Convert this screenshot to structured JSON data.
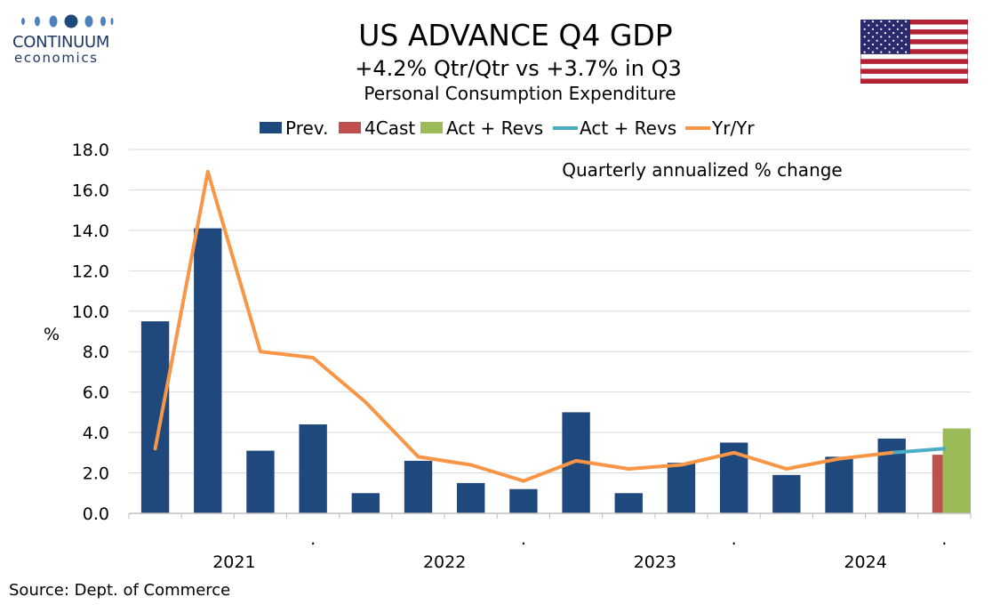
{
  "logo": {
    "line1": "CONTINUUM",
    "line2": "economics"
  },
  "header": {
    "title": "US ADVANCE Q4  GDP",
    "subtitle": "+4.2% Qtr/Qtr vs +3.7% in Q3",
    "subtitle2": "Personal Consumption Expenditure"
  },
  "source": "Source: Dept. of Commerce",
  "colors": {
    "prev": "#1f497d",
    "forecast": "#c0504d",
    "actual_bar": "#9bbb59",
    "actual_line": "#4bacc6",
    "yoy": "#f79646",
    "grid": "#d9d9d9"
  },
  "chart_data": {
    "type": "bar",
    "annotation": "Quarterly annualized % change",
    "ylabel": "%",
    "ylim": [
      0,
      18
    ],
    "yticks": [
      "0.0",
      "2.0",
      "4.0",
      "6.0",
      "8.0",
      "10.0",
      "12.0",
      "14.0",
      "16.0",
      "18.0"
    ],
    "year_labels": [
      {
        "label": "2021",
        "center_index": 1.5
      },
      {
        "label": "2022",
        "center_index": 5.5
      },
      {
        "label": "2023",
        "center_index": 9.5
      },
      {
        "label": "2024",
        "center_index": 13.5
      }
    ],
    "year_dot_after": [
      3,
      7,
      11,
      15
    ],
    "year_dot_label": ".",
    "legend": [
      "Prev.",
      "4Cast",
      "Act + Revs",
      "Act + Revs",
      "Yr/Yr"
    ],
    "legend_placement": "top",
    "series": [
      {
        "name": "Prev.",
        "kind": "bar",
        "values": [
          9.5,
          14.1,
          3.1,
          4.4,
          1.0,
          2.6,
          1.5,
          1.2,
          5.0,
          1.0,
          2.5,
          3.5,
          1.9,
          2.8,
          3.7,
          null
        ]
      },
      {
        "name": "4Cast",
        "kind": "bar",
        "values": [
          null,
          null,
          null,
          null,
          null,
          null,
          null,
          null,
          null,
          null,
          null,
          null,
          null,
          null,
          null,
          2.9
        ]
      },
      {
        "name": "Act + Revs",
        "kind": "bar",
        "values": [
          null,
          null,
          null,
          null,
          null,
          null,
          null,
          null,
          null,
          null,
          null,
          null,
          null,
          null,
          null,
          4.2
        ]
      },
      {
        "name": "Act + Revs",
        "kind": "line",
        "values": [
          null,
          null,
          null,
          null,
          null,
          null,
          null,
          null,
          null,
          null,
          null,
          null,
          null,
          null,
          3.0,
          3.2
        ]
      },
      {
        "name": "Yr/Yr",
        "kind": "line",
        "values": [
          3.2,
          16.9,
          8.0,
          7.7,
          5.5,
          2.8,
          2.4,
          1.6,
          2.6,
          2.2,
          2.4,
          3.0,
          2.2,
          2.7,
          3.0,
          null
        ]
      }
    ]
  }
}
